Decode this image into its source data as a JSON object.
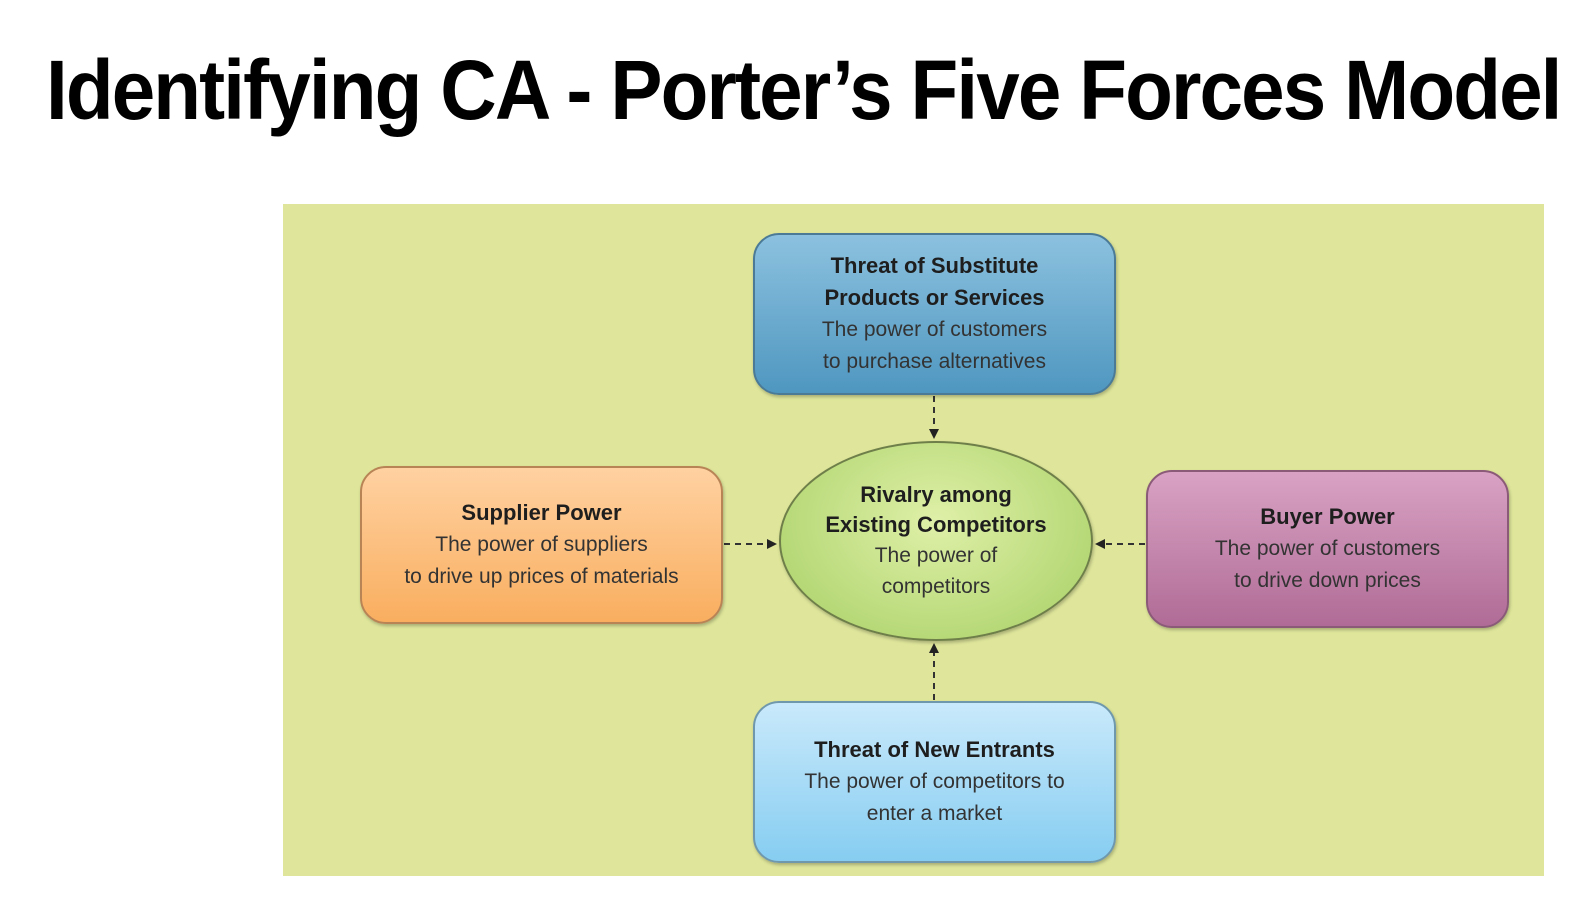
{
  "title": "Identifying CA - Porter’s Five Forces Model",
  "colors": {
    "background": "#dfe69b",
    "substitute": "#5fa3c9",
    "supplier": "#fbb66c",
    "buyer": "#ba7aa2",
    "entrants": "#9dd6f4",
    "rivalry": "#b5d872"
  },
  "diagram": {
    "substitute": {
      "heading_line1": "Threat of Substitute",
      "heading_line2": "Products or Services",
      "desc_line1": "The power of customers",
      "desc_line2": "to purchase alternatives"
    },
    "supplier": {
      "heading": "Supplier Power",
      "desc_line1": "The power of suppliers",
      "desc_line2": "to drive up prices of materials"
    },
    "rivalry": {
      "heading_line1": "Rivalry among",
      "heading_line2": "Existing Competitors",
      "desc_line1": "The power of",
      "desc_line2": "competitors"
    },
    "buyer": {
      "heading": "Buyer Power",
      "desc_line1": "The power of customers",
      "desc_line2": "to drive down prices"
    },
    "entrants": {
      "heading": "Threat of New Entrants",
      "desc_line1": "The power of competitors to",
      "desc_line2": "enter a market"
    }
  }
}
